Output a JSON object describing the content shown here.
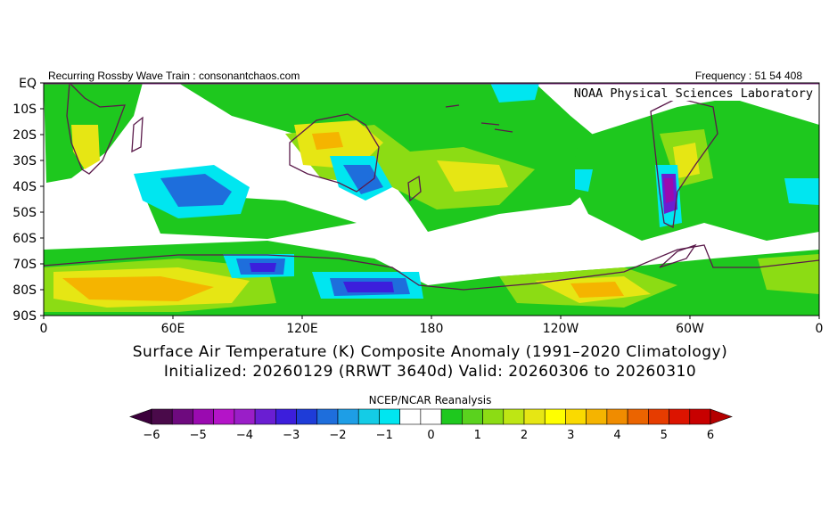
{
  "header": {
    "left": "Recurring Rossby Wave Train : consonantchaos.com",
    "right": "Frequency : 51 54 408",
    "inset_label": "NOAA Physical Sciences Laboratory"
  },
  "map": {
    "lat_labels": [
      "EQ",
      "10S",
      "20S",
      "30S",
      "40S",
      "50S",
      "60S",
      "70S",
      "80S",
      "90S"
    ],
    "lon_labels": [
      "0",
      "60E",
      "120E",
      "180",
      "120W",
      "60W",
      "0"
    ],
    "lon_values": [
      0,
      60,
      120,
      180,
      240,
      300,
      360
    ],
    "lat_values": [
      0,
      -10,
      -20,
      -30,
      -40,
      -50,
      -60,
      -70,
      -80,
      -90
    ],
    "colors": {
      "frame": "#000000",
      "coastline": "#5a1a4a",
      "equator_line": "#7a1f7a"
    }
  },
  "title": {
    "line1": "Surface Air Temperature (K) Composite Anomaly (1991–2020 Climatology)",
    "line2": "Initialized: 20260129 (RRWT 3640d) Valid: 20260306 to 20260310"
  },
  "colorbar": {
    "title": "NCEP/NCAR Reanalysis",
    "tick_labels": [
      "−6",
      "−5",
      "−4",
      "−3",
      "−2",
      "−1",
      "0",
      "1",
      "2",
      "3",
      "4",
      "5",
      "6"
    ],
    "tick_values": [
      -6,
      -5,
      -4,
      -3,
      -2,
      -1,
      0,
      1,
      2,
      3,
      4,
      5,
      6
    ],
    "colors": [
      "#4a0a4a",
      "#6e0a7e",
      "#9a0ab0",
      "#b414c8",
      "#9a1ec8",
      "#6a1ed2",
      "#3c1edc",
      "#1e3cd8",
      "#1e6edc",
      "#1e9ee6",
      "#14cce6",
      "#00e6f0",
      "#ffffff",
      "#ffffff",
      "#1ec81e",
      "#5ad21e",
      "#8cdc14",
      "#bee614",
      "#e6e614",
      "#ffff00",
      "#fada00",
      "#f5b400",
      "#f08c00",
      "#eb6400",
      "#e63c00",
      "#dc1400",
      "#c80000"
    ],
    "under_color": "#3c003c",
    "over_color": "#b40000"
  }
}
